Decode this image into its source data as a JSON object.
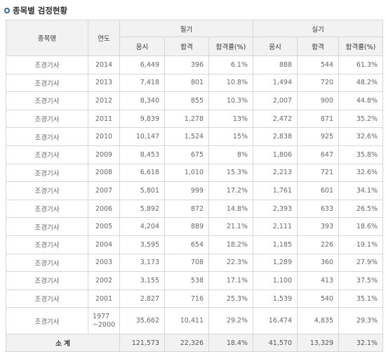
{
  "section_title": "종목별 검정현황",
  "headers": {
    "name": "종목명",
    "year": "연도",
    "written": "필기",
    "practical": "실기",
    "apply": "응시",
    "pass": "합격",
    "rate": "합격률(%)"
  },
  "rows": [
    {
      "name": "조경기사",
      "year": "2014",
      "w_apply": "6,449",
      "w_pass": "396",
      "w_rate": "6.1%",
      "p_apply": "888",
      "p_pass": "544",
      "p_rate": "61.3%"
    },
    {
      "name": "조경기사",
      "year": "2013",
      "w_apply": "7,418",
      "w_pass": "801",
      "w_rate": "10.8%",
      "p_apply": "1,494",
      "p_pass": "720",
      "p_rate": "48.2%"
    },
    {
      "name": "조경기사",
      "year": "2012",
      "w_apply": "8,340",
      "w_pass": "855",
      "w_rate": "10.3%",
      "p_apply": "2,007",
      "p_pass": "900",
      "p_rate": "44.8%"
    },
    {
      "name": "조경기사",
      "year": "2011",
      "w_apply": "9,839",
      "w_pass": "1,278",
      "w_rate": "13%",
      "p_apply": "2,472",
      "p_pass": "871",
      "p_rate": "35.2%"
    },
    {
      "name": "조경기사",
      "year": "2010",
      "w_apply": "10,147",
      "w_pass": "1,524",
      "w_rate": "15%",
      "p_apply": "2,838",
      "p_pass": "925",
      "p_rate": "32.6%"
    },
    {
      "name": "조경기사",
      "year": "2009",
      "w_apply": "8,453",
      "w_pass": "675",
      "w_rate": "8%",
      "p_apply": "1,806",
      "p_pass": "647",
      "p_rate": "35.8%"
    },
    {
      "name": "조경기사",
      "year": "2008",
      "w_apply": "6,618",
      "w_pass": "1,010",
      "w_rate": "15.3%",
      "p_apply": "2,213",
      "p_pass": "721",
      "p_rate": "32.6%"
    },
    {
      "name": "조경기사",
      "year": "2007",
      "w_apply": "5,801",
      "w_pass": "999",
      "w_rate": "17.2%",
      "p_apply": "1,761",
      "p_pass": "601",
      "p_rate": "34.1%"
    },
    {
      "name": "조경기사",
      "year": "2006",
      "w_apply": "5,892",
      "w_pass": "872",
      "w_rate": "14.8%",
      "p_apply": "2,393",
      "p_pass": "633",
      "p_rate": "26.5%"
    },
    {
      "name": "조경기사",
      "year": "2005",
      "w_apply": "4,204",
      "w_pass": "889",
      "w_rate": "21.1%",
      "p_apply": "2,111",
      "p_pass": "393",
      "p_rate": "18.6%"
    },
    {
      "name": "조경기사",
      "year": "2004",
      "w_apply": "3,595",
      "w_pass": "654",
      "w_rate": "18.2%",
      "p_apply": "1,185",
      "p_pass": "226",
      "p_rate": "19.1%"
    },
    {
      "name": "조경기사",
      "year": "2003",
      "w_apply": "3,173",
      "w_pass": "708",
      "w_rate": "22.3%",
      "p_apply": "1,289",
      "p_pass": "360",
      "p_rate": "27.9%"
    },
    {
      "name": "조경기사",
      "year": "2002",
      "w_apply": "3,155",
      "w_pass": "538",
      "w_rate": "17.1%",
      "p_apply": "1,100",
      "p_pass": "413",
      "p_rate": "37.5%"
    },
    {
      "name": "조경기사",
      "year": "2001",
      "w_apply": "2,827",
      "w_pass": "716",
      "w_rate": "25.3%",
      "p_apply": "1,539",
      "p_pass": "540",
      "p_rate": "35.1%"
    },
    {
      "name": "조경기사",
      "year_line1": "1977",
      "year_line2": "~2000",
      "w_apply": "35,662",
      "w_pass": "10,411",
      "w_rate": "29.2%",
      "p_apply": "16,474",
      "p_pass": "4,835",
      "p_rate": "29.3%"
    }
  ],
  "total": {
    "label": "소 계",
    "w_apply": "121,573",
    "w_pass": "22,326",
    "w_rate": "18.4%",
    "p_apply": "41,570",
    "p_pass": "13,329",
    "p_rate": "32.1%"
  },
  "colors": {
    "header_bg": "#f2f2f2",
    "border": "#d6d6d6",
    "bullet": "#2b6aa8"
  }
}
